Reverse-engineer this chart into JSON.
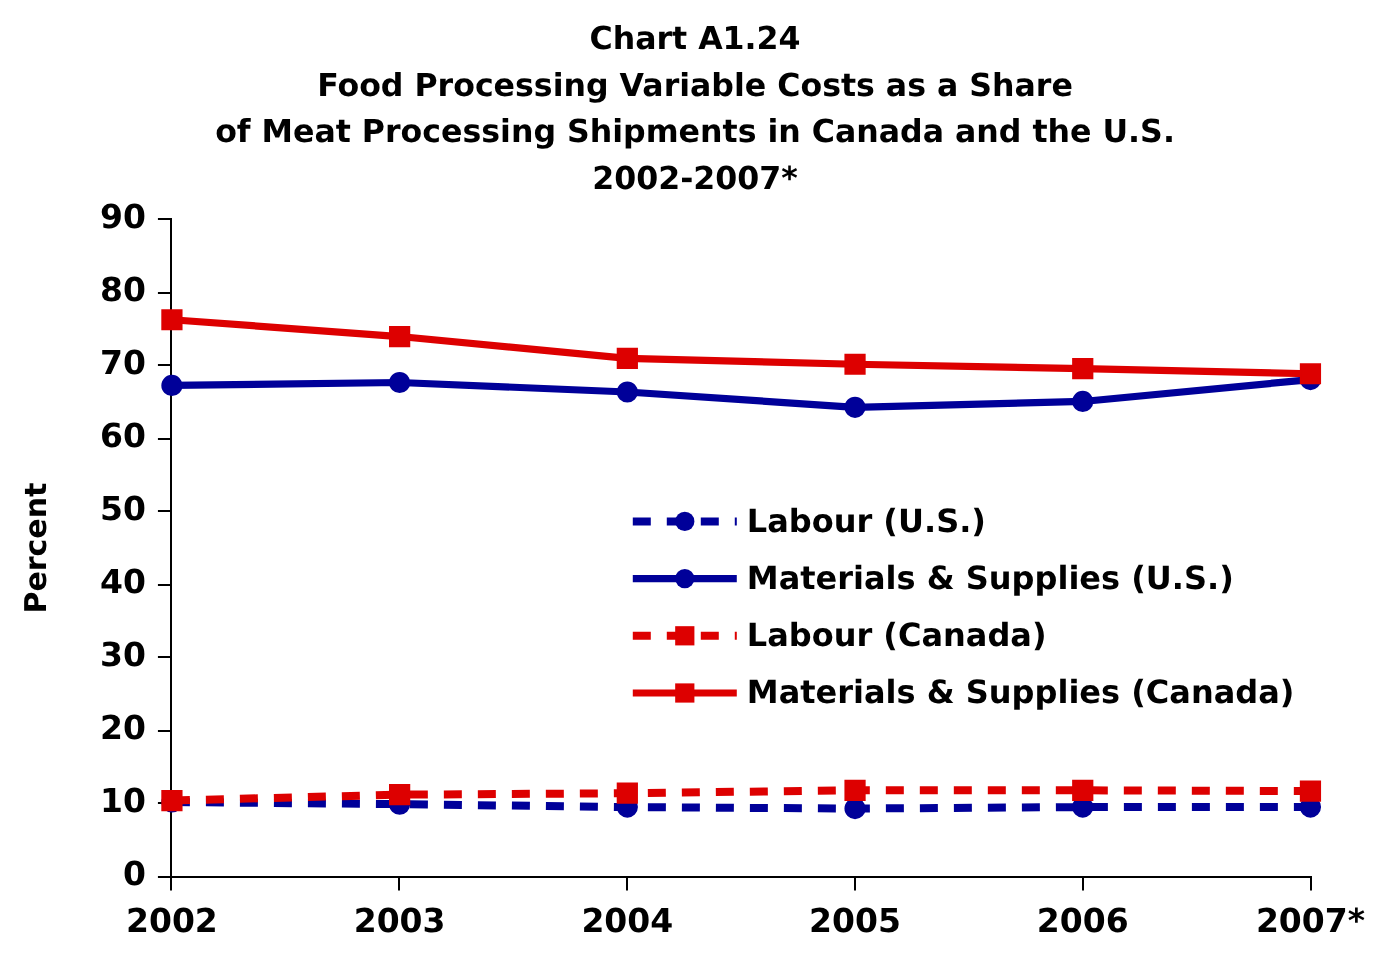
{
  "chart_data": {
    "type": "line",
    "title": "Chart A1.24\nFood Processing Variable Costs as a Share\nof Meat Processing Shipments in Canada and the U.S.\n2002-2007*",
    "ylabel": "Percent",
    "categories": [
      "2002",
      "2003",
      "2004",
      "2005",
      "2006",
      "2007*"
    ],
    "ylim": [
      0,
      90
    ],
    "yticks": [
      0,
      10,
      20,
      30,
      40,
      50,
      60,
      70,
      80,
      90
    ],
    "legend": "right",
    "series": [
      {
        "name": "Labour (U.S.)",
        "color": "#000099",
        "line_style": "dashed",
        "marker": "circle",
        "values": [
          10.2,
          9.9,
          9.5,
          9.3,
          9.5,
          9.5
        ]
      },
      {
        "name": "Materials & Supplies (U.S.)",
        "color": "#000099",
        "line_style": "solid",
        "marker": "circle",
        "values": [
          67.3,
          67.7,
          66.4,
          64.3,
          65.1,
          68.1
        ]
      },
      {
        "name": "Labour (Canada)",
        "color": "#dd0000",
        "line_style": "dashed",
        "marker": "square",
        "values": [
          10.4,
          11.2,
          11.4,
          11.8,
          11.8,
          11.7
        ]
      },
      {
        "name": "Materials & Supplies (Canada)",
        "color": "#dd0000",
        "line_style": "solid",
        "marker": "square",
        "values": [
          76.3,
          74.0,
          71.0,
          70.2,
          69.6,
          68.9
        ]
      }
    ]
  }
}
